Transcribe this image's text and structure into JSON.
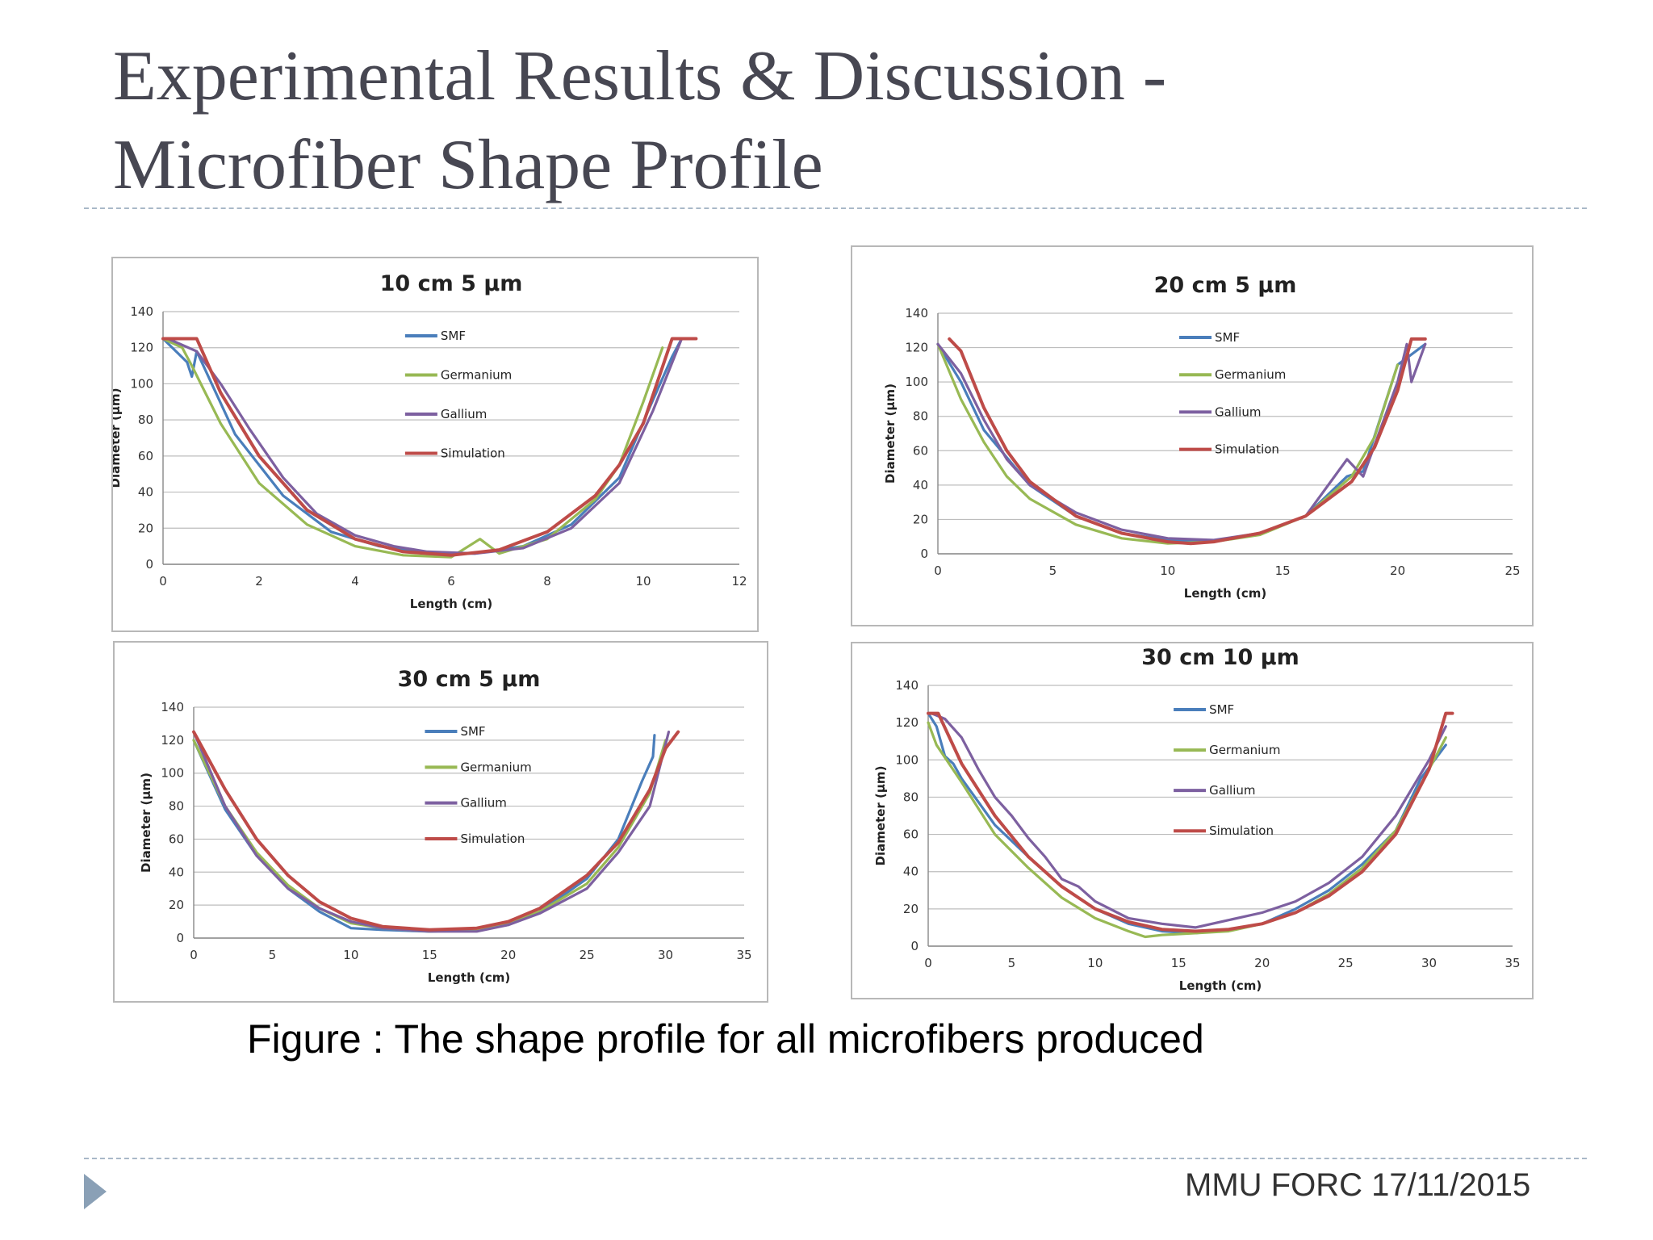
{
  "slide": {
    "title_line1": "Experimental Results & Discussion -",
    "title_line2": "Microfiber Shape Profile",
    "caption": "Figure : The shape profile for  all microfibers produced",
    "footer": "MMU FORC 17/11/2015"
  },
  "colors": {
    "SMF": "#4a7ebb",
    "Germanium": "#98b954",
    "Gallium": "#7d60a0",
    "Simulation": "#be4b48"
  },
  "chart_data": [
    {
      "type": "line",
      "title": "10 cm 5 µm",
      "xlabel": "Length (cm)",
      "ylabel": "Diameter (µm)",
      "xlim": [
        0,
        12
      ],
      "ylim": [
        0,
        140
      ],
      "xticks": [
        0,
        2,
        4,
        6,
        8,
        10,
        12
      ],
      "yticks": [
        0,
        20,
        40,
        60,
        80,
        100,
        120,
        140
      ],
      "grid": true,
      "legend": "inside-top-center",
      "series": [
        {
          "name": "SMF",
          "x": [
            0,
            0.5,
            0.6,
            0.7,
            1.5,
            2.5,
            3.5,
            4.5,
            5.5,
            6.5,
            7.5,
            8.5,
            9.5,
            10.1,
            10.6,
            10.8
          ],
          "y": [
            125,
            112,
            104,
            118,
            72,
            38,
            18,
            10,
            6,
            6,
            10,
            22,
            48,
            85,
            115,
            125
          ]
        },
        {
          "name": "Germanium",
          "x": [
            0,
            0.4,
            0.6,
            1.2,
            2,
            3,
            4,
            5,
            6,
            6.6,
            7,
            8,
            9,
            9.5,
            10,
            10.4
          ],
          "y": [
            125,
            120,
            110,
            78,
            45,
            22,
            10,
            5,
            4,
            14,
            6,
            14,
            36,
            55,
            90,
            120
          ]
        },
        {
          "name": "Gallium",
          "x": [
            0.1,
            0.7,
            1.2,
            1.8,
            2.5,
            3.2,
            4,
            4.8,
            5.5,
            6.5,
            7.5,
            8.5,
            9.5,
            10.2,
            10.8
          ],
          "y": [
            125,
            118,
            100,
            75,
            48,
            28,
            16,
            10,
            7,
            6,
            9,
            20,
            45,
            85,
            125
          ]
        },
        {
          "name": "Simulation",
          "x": [
            0,
            0.7,
            1.2,
            2,
            3,
            4,
            5,
            6,
            7,
            8,
            9,
            9.5,
            10,
            10.6,
            11.1
          ],
          "y": [
            125,
            125,
            95,
            60,
            30,
            14,
            7,
            5,
            8,
            18,
            38,
            55,
            78,
            125,
            125
          ]
        }
      ]
    },
    {
      "type": "line",
      "title": "20 cm 5 µm",
      "xlabel": "Length (cm)",
      "ylabel": "Diameter (µm)",
      "xlim": [
        0,
        25
      ],
      "ylim": [
        0,
        140
      ],
      "xticks": [
        0,
        5,
        10,
        15,
        20,
        25
      ],
      "yticks": [
        0,
        20,
        40,
        60,
        80,
        100,
        120,
        140
      ],
      "grid": true,
      "legend": "inside-top-center",
      "series": [
        {
          "name": "SMF",
          "x": [
            0,
            1,
            2,
            4,
            6,
            8,
            10,
            12,
            14,
            16,
            17.8,
            18.5,
            20,
            21.2
          ],
          "y": [
            122,
            100,
            72,
            40,
            22,
            12,
            8,
            7,
            12,
            22,
            45,
            48,
            110,
            122
          ]
        },
        {
          "name": "Germanium",
          "x": [
            0,
            1,
            2,
            3,
            4,
            6,
            8,
            10,
            12,
            14,
            16,
            18,
            19,
            20
          ],
          "y": [
            122,
            90,
            65,
            45,
            32,
            17,
            9,
            6,
            7,
            11,
            22,
            45,
            68,
            110
          ]
        },
        {
          "name": "Gallium",
          "x": [
            0,
            1,
            2,
            3,
            4,
            6,
            8,
            10,
            12,
            14,
            16,
            17.8,
            18.5,
            20,
            20.4,
            20.6,
            21.2
          ],
          "y": [
            122,
            105,
            78,
            55,
            40,
            24,
            14,
            9,
            8,
            12,
            22,
            55,
            45,
            100,
            122,
            100,
            122
          ]
        },
        {
          "name": "Simulation",
          "x": [
            0.5,
            1,
            2,
            3,
            4,
            6,
            8,
            10,
            11,
            12,
            14,
            16,
            18,
            19,
            20,
            20.6,
            21.2
          ],
          "y": [
            125,
            118,
            85,
            60,
            42,
            22,
            12,
            7,
            6,
            7,
            12,
            22,
            42,
            62,
            95,
            125,
            125
          ]
        }
      ]
    },
    {
      "type": "line",
      "title": "30 cm 5 µm",
      "xlabel": "Length (cm)",
      "ylabel": "Diameter (µm)",
      "xlim": [
        0,
        35
      ],
      "ylim": [
        0,
        140
      ],
      "xticks": [
        0,
        5,
        10,
        15,
        20,
        25,
        30,
        35
      ],
      "yticks": [
        0,
        20,
        40,
        60,
        80,
        100,
        120,
        140
      ],
      "grid": true,
      "legend": "inside-top-center",
      "series": [
        {
          "name": "SMF",
          "x": [
            0,
            2,
            4,
            6,
            8,
            10,
            12,
            15,
            18,
            20,
            22,
            25,
            27,
            28.5,
            29.2,
            29.3
          ],
          "y": [
            120,
            78,
            50,
            30,
            16,
            6,
            5,
            4,
            5,
            8,
            16,
            36,
            60,
            95,
            110,
            123
          ]
        },
        {
          "name": "Germanium",
          "x": [
            0,
            2,
            4,
            6,
            8,
            10,
            12,
            15,
            18,
            20,
            22,
            25,
            27,
            29,
            30
          ],
          "y": [
            120,
            80,
            52,
            32,
            18,
            9,
            6,
            4,
            5,
            9,
            16,
            33,
            55,
            88,
            120
          ]
        },
        {
          "name": "Gallium",
          "x": [
            0,
            2,
            4,
            6,
            8,
            10,
            12,
            15,
            18,
            20,
            22,
            25,
            27,
            29,
            30.2
          ],
          "y": [
            125,
            80,
            50,
            30,
            18,
            10,
            6,
            4,
            4,
            8,
            15,
            30,
            52,
            80,
            125
          ]
        },
        {
          "name": "Simulation",
          "x": [
            0,
            2,
            4,
            6,
            8,
            10,
            12,
            15,
            18,
            20,
            22,
            25,
            27,
            29,
            30,
            30.8
          ],
          "y": [
            125,
            90,
            60,
            38,
            22,
            12,
            7,
            5,
            6,
            10,
            18,
            38,
            58,
            90,
            115,
            125
          ]
        }
      ]
    },
    {
      "type": "line",
      "title": "30 cm 10 µm",
      "xlabel": "Length (cm)",
      "ylabel": "Diameter (µm)",
      "xlim": [
        0,
        35
      ],
      "ylim": [
        0,
        140
      ],
      "xticks": [
        0,
        5,
        10,
        15,
        20,
        25,
        30,
        35
      ],
      "yticks": [
        0,
        20,
        40,
        60,
        80,
        100,
        120,
        140
      ],
      "grid": true,
      "legend": "inside-top-center",
      "series": [
        {
          "name": "SMF",
          "x": [
            0,
            0.5,
            1,
            1.5,
            2,
            4,
            6,
            8,
            10,
            12,
            14,
            16,
            18,
            20,
            22,
            24,
            26,
            28,
            29.5,
            31
          ],
          "y": [
            125,
            118,
            102,
            98,
            90,
            65,
            48,
            32,
            20,
            12,
            8,
            7,
            9,
            12,
            20,
            30,
            44,
            62,
            90,
            108
          ]
        },
        {
          "name": "Germanium",
          "x": [
            0,
            0.5,
            2,
            4,
            6,
            8,
            10,
            12,
            13,
            14,
            16,
            18,
            20,
            22,
            24,
            26,
            28,
            30,
            31
          ],
          "y": [
            120,
            108,
            88,
            60,
            42,
            26,
            15,
            8,
            5,
            6,
            7,
            8,
            12,
            18,
            28,
            42,
            62,
            95,
            112
          ]
        },
        {
          "name": "Gallium",
          "x": [
            0.2,
            1,
            2,
            3,
            4,
            5,
            6,
            7,
            8,
            9,
            10,
            12,
            14,
            16,
            18,
            20,
            22,
            24,
            26,
            28,
            30,
            31
          ],
          "y": [
            125,
            122,
            112,
            95,
            80,
            70,
            58,
            48,
            36,
            32,
            24,
            15,
            12,
            10,
            14,
            18,
            24,
            34,
            48,
            70,
            100,
            118
          ]
        },
        {
          "name": "Simulation",
          "x": [
            0,
            0.6,
            2,
            4,
            6,
            8,
            10,
            12,
            14,
            16,
            18,
            20,
            22,
            24,
            26,
            28,
            30,
            31,
            31.4
          ],
          "y": [
            125,
            125,
            98,
            70,
            48,
            32,
            20,
            13,
            9,
            8,
            9,
            12,
            18,
            27,
            40,
            60,
            95,
            125,
            125
          ]
        }
      ]
    }
  ]
}
